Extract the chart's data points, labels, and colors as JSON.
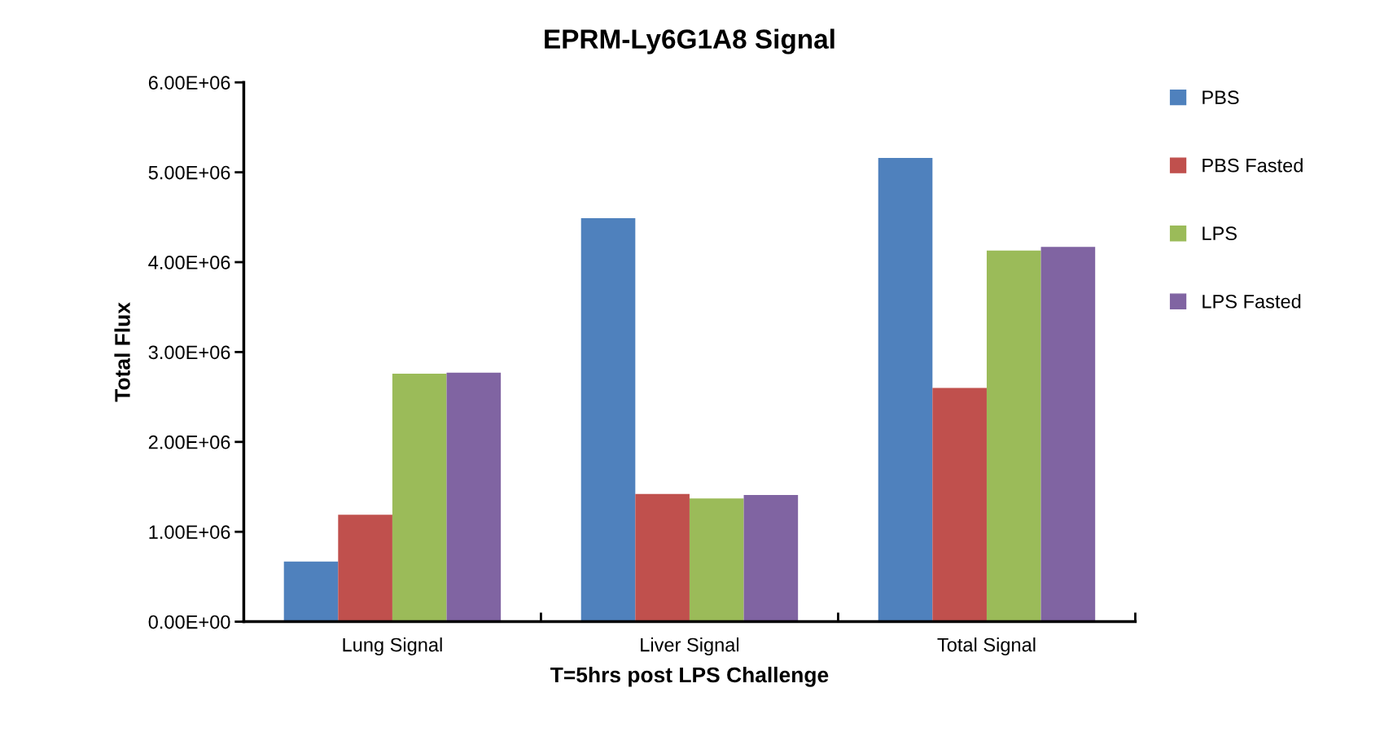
{
  "chart_data": {
    "type": "bar",
    "title": "EPRM-Ly6G1A8 Signal",
    "xlabel": "T=5hrs post LPS Challenge",
    "ylabel": "Total Flux",
    "categories": [
      "Lung Signal",
      "Liver Signal",
      "Total Signal"
    ],
    "series": [
      {
        "name": "PBS",
        "color": "#4f81bd",
        "values": [
          670000,
          4490000,
          5160000
        ]
      },
      {
        "name": "PBS Fasted",
        "color": "#c0504d",
        "values": [
          1190000,
          1420000,
          2600000
        ]
      },
      {
        "name": "LPS",
        "color": "#9bbb59",
        "values": [
          2760000,
          1370000,
          4130000
        ]
      },
      {
        "name": "LPS Fasted",
        "color": "#8064a2",
        "values": [
          2770000,
          1410000,
          4170000
        ]
      }
    ],
    "ylim": [
      0,
      6000000
    ],
    "yticks": [
      {
        "value": 0,
        "label": "0.00E+00"
      },
      {
        "value": 1000000,
        "label": "1.00E+06"
      },
      {
        "value": 2000000,
        "label": "2.00E+06"
      },
      {
        "value": 3000000,
        "label": "3.00E+06"
      },
      {
        "value": 4000000,
        "label": "4.00E+06"
      },
      {
        "value": 5000000,
        "label": "5.00E+06"
      },
      {
        "value": 6000000,
        "label": "6.00E+06"
      }
    ],
    "grid": false,
    "legend": "right"
  }
}
